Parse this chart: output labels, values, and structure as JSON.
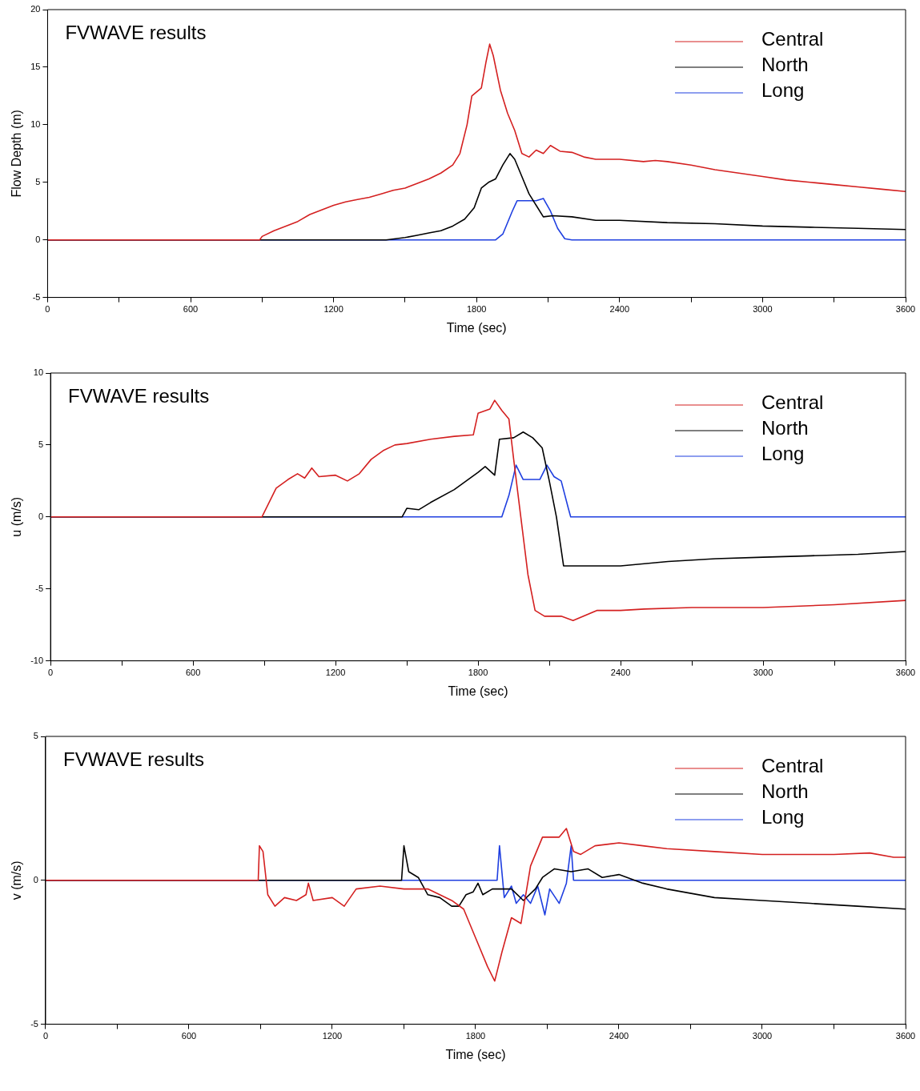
{
  "chart_data": [
    {
      "type": "line",
      "title": "FVWAVE results",
      "xlabel": "Time (sec)",
      "ylabel": "Flow Depth (m)",
      "legend": "top right",
      "xlim": [
        0,
        3600
      ],
      "ylim": [
        -5,
        20
      ],
      "xticks": [
        0,
        {
          "value": 300,
          "label": null
        },
        600,
        {
          "value": 900,
          "label": null
        },
        1200,
        {
          "value": 1500,
          "label": null
        },
        1800,
        {
          "value": 2100,
          "label": null
        },
        2400,
        {
          "value": 2700,
          "label": null
        },
        3000,
        {
          "value": 3300,
          "label": null
        },
        3600
      ],
      "yticks": [
        -5,
        0,
        5,
        10,
        15,
        20
      ],
      "series": [
        {
          "name": "Central",
          "color": "#d42020",
          "x": [
            0,
            890,
            900,
            950,
            1000,
            1050,
            1100,
            1150,
            1200,
            1250,
            1300,
            1350,
            1400,
            1450,
            1500,
            1550,
            1600,
            1650,
            1700,
            1730,
            1760,
            1780,
            1820,
            1840,
            1855,
            1870,
            1900,
            1930,
            1960,
            1990,
            2020,
            2050,
            2080,
            2110,
            2150,
            2200,
            2250,
            2300,
            2400,
            2500,
            2550,
            2600,
            2700,
            2800,
            2900,
            3000,
            3100,
            3200,
            3300,
            3400,
            3500,
            3600
          ],
          "values": [
            0,
            0,
            0.3,
            0.8,
            1.2,
            1.6,
            2.2,
            2.6,
            3.0,
            3.3,
            3.5,
            3.7,
            4.0,
            4.3,
            4.5,
            4.9,
            5.3,
            5.8,
            6.5,
            7.5,
            10,
            12.5,
            13.2,
            15.5,
            17,
            16,
            13,
            11,
            9.5,
            7.5,
            7.2,
            7.8,
            7.5,
            8.2,
            7.7,
            7.6,
            7.2,
            7.0,
            7.0,
            6.8,
            6.9,
            6.8,
            6.5,
            6.1,
            5.8,
            5.5,
            5.2,
            5.0,
            4.8,
            4.6,
            4.4,
            4.2
          ]
        },
        {
          "name": "North",
          "color": "#000000",
          "x": [
            0,
            1420,
            1500,
            1550,
            1600,
            1650,
            1700,
            1750,
            1790,
            1820,
            1850,
            1880,
            1910,
            1940,
            1960,
            1990,
            2020,
            2050,
            2080,
            2120,
            2200,
            2300,
            2400,
            2600,
            2800,
            3000,
            3200,
            3400,
            3600
          ],
          "values": [
            0,
            0,
            0.2,
            0.4,
            0.6,
            0.8,
            1.2,
            1.8,
            2.8,
            4.5,
            5.0,
            5.3,
            6.5,
            7.5,
            7.0,
            5.5,
            4.0,
            3.0,
            2.0,
            2.1,
            2.0,
            1.7,
            1.7,
            1.5,
            1.4,
            1.2,
            1.1,
            1.0,
            0.9
          ]
        },
        {
          "name": "Long",
          "color": "#1f3fe0",
          "x": [
            0,
            1880,
            1910,
            1950,
            1970,
            2050,
            2080,
            2110,
            2140,
            2170,
            2200,
            3600
          ],
          "values": [
            0,
            0,
            0.5,
            2.5,
            3.4,
            3.4,
            3.6,
            2.5,
            1.0,
            0.1,
            0,
            0
          ]
        }
      ]
    },
    {
      "type": "line",
      "title": "FVWAVE results",
      "xlabel": "Time (sec)",
      "ylabel": "u (m/s)",
      "legend": "top right",
      "xlim": [
        0,
        3600
      ],
      "ylim": [
        -10,
        10
      ],
      "xticks": [
        0,
        {
          "value": 300,
          "label": null
        },
        600,
        {
          "value": 900,
          "label": null
        },
        1200,
        {
          "value": 1500,
          "label": null
        },
        1800,
        {
          "value": 2100,
          "label": null
        },
        2400,
        {
          "value": 2700,
          "label": null
        },
        3000,
        {
          "value": 3300,
          "label": null
        },
        3600
      ],
      "yticks": [
        -10,
        -5,
        0,
        5,
        10
      ],
      "series": [
        {
          "name": "Central",
          "color": "#d42020",
          "x": [
            0,
            890,
            920,
            950,
            1000,
            1040,
            1070,
            1100,
            1130,
            1200,
            1250,
            1300,
            1350,
            1400,
            1450,
            1500,
            1600,
            1700,
            1780,
            1800,
            1850,
            1870,
            1900,
            1930,
            1950,
            1980,
            2010,
            2040,
            2080,
            2150,
            2200,
            2300,
            2400,
            2500,
            2700,
            3000,
            3300,
            3600
          ],
          "values": [
            0,
            0,
            1.0,
            2.0,
            2.6,
            3.0,
            2.7,
            3.4,
            2.8,
            2.9,
            2.5,
            3.0,
            4.0,
            4.6,
            5.0,
            5.1,
            5.4,
            5.6,
            5.7,
            7.2,
            7.5,
            8.1,
            7.4,
            6.8,
            4.0,
            0,
            -4,
            -6.5,
            -6.9,
            -6.9,
            -7.2,
            -6.5,
            -6.5,
            -6.4,
            -6.3,
            -6.3,
            -6.1,
            -5.8
          ]
        },
        {
          "name": "North",
          "color": "#000000",
          "x": [
            0,
            1480,
            1500,
            1550,
            1600,
            1700,
            1750,
            1800,
            1830,
            1870,
            1890,
            1950,
            1990,
            2030,
            2070,
            2100,
            2130,
            2160,
            2200,
            2400,
            2600,
            2800,
            3000,
            3200,
            3400,
            3600
          ],
          "values": [
            0,
            0,
            0.6,
            0.5,
            1.0,
            1.9,
            2.5,
            3.1,
            3.5,
            2.9,
            5.4,
            5.5,
            5.9,
            5.5,
            4.8,
            2.5,
            0,
            -3.4,
            -3.4,
            -3.4,
            -3.1,
            -2.9,
            -2.8,
            -2.7,
            -2.6,
            -2.4
          ]
        },
        {
          "name": "Long",
          "color": "#1f3fe0",
          "x": [
            0,
            1900,
            1930,
            1960,
            1990,
            2060,
            2090,
            2120,
            2150,
            2180,
            2190,
            3600
          ],
          "values": [
            0,
            0,
            1.5,
            3.6,
            2.6,
            2.6,
            3.6,
            2.8,
            2.5,
            0.6,
            0,
            0
          ]
        }
      ]
    },
    {
      "type": "line",
      "title": "FVWAVE results",
      "xlabel": "Time (sec)",
      "ylabel": "v (m/s)",
      "legend": "top right",
      "xlim": [
        0,
        3600
      ],
      "ylim": [
        -5,
        5
      ],
      "xticks": [
        0,
        {
          "value": 300,
          "label": null
        },
        600,
        {
          "value": 900,
          "label": null
        },
        1200,
        {
          "value": 1500,
          "label": null
        },
        1800,
        {
          "value": 2100,
          "label": null
        },
        2400,
        {
          "value": 2700,
          "label": null
        },
        3000,
        {
          "value": 3300,
          "label": null
        },
        3600
      ],
      "yticks": [
        -5,
        0,
        5
      ],
      "series": [
        {
          "name": "Central",
          "color": "#d42020",
          "x": [
            0,
            890,
            895,
            910,
            930,
            960,
            1000,
            1050,
            1090,
            1100,
            1120,
            1200,
            1250,
            1300,
            1400,
            1500,
            1600,
            1650,
            1700,
            1750,
            1800,
            1850,
            1880,
            1910,
            1950,
            1990,
            2030,
            2080,
            2150,
            2180,
            2210,
            2240,
            2300,
            2400,
            2500,
            2600,
            2800,
            3000,
            3300,
            3450,
            3550,
            3600
          ],
          "values": [
            0,
            0,
            1.2,
            1.0,
            -0.5,
            -0.9,
            -0.6,
            -0.7,
            -0.5,
            -0.1,
            -0.7,
            -0.6,
            -0.9,
            -0.3,
            -0.2,
            -0.3,
            -0.3,
            -0.5,
            -0.7,
            -1.0,
            -2.0,
            -3.0,
            -3.5,
            -2.5,
            -1.3,
            -1.5,
            0.5,
            1.5,
            1.5,
            1.8,
            1.0,
            0.9,
            1.2,
            1.3,
            1.2,
            1.1,
            1.0,
            0.9,
            0.9,
            0.95,
            0.8,
            0.8
          ]
        },
        {
          "name": "North",
          "color": "#000000",
          "x": [
            0,
            1490,
            1500,
            1520,
            1560,
            1600,
            1650,
            1700,
            1730,
            1760,
            1790,
            1810,
            1830,
            1870,
            1950,
            2000,
            2050,
            2080,
            2130,
            2200,
            2270,
            2330,
            2400,
            2500,
            2600,
            2800,
            3000,
            3200,
            3400,
            3600
          ],
          "values": [
            0,
            0,
            1.2,
            0.3,
            0.1,
            -0.5,
            -0.6,
            -0.9,
            -0.9,
            -0.5,
            -0.4,
            -0.1,
            -0.5,
            -0.3,
            -0.3,
            -0.7,
            -0.3,
            0.1,
            0.4,
            0.3,
            0.4,
            0.1,
            0.2,
            -0.1,
            -0.3,
            -0.6,
            -0.7,
            -0.8,
            -0.9,
            -1.0
          ]
        },
        {
          "name": "Long",
          "color": "#1f3fe0",
          "x": [
            0,
            1890,
            1900,
            1920,
            1950,
            1970,
            2000,
            2030,
            2060,
            2090,
            2110,
            2150,
            2180,
            2200,
            2210,
            3600
          ],
          "values": [
            0,
            0,
            1.2,
            -0.6,
            -0.2,
            -0.8,
            -0.5,
            -0.8,
            -0.2,
            -1.2,
            -0.3,
            -0.8,
            -0.1,
            1.2,
            0,
            0
          ]
        }
      ]
    }
  ]
}
